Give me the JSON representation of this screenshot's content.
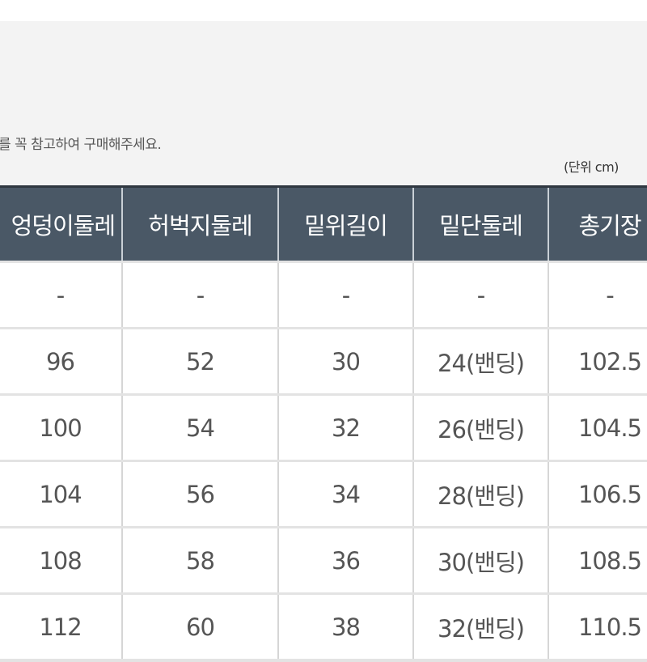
{
  "notice": "를 꼭 참고하여 구매해주세요.",
  "unit_label": "(단위 cm)",
  "table": {
    "headers": [
      "엉덩이둘레",
      "허벅지둘레",
      "밑위길이",
      "밑단둘레",
      "총기장"
    ],
    "rows": [
      [
        "-",
        "-",
        "-",
        "-",
        "-"
      ],
      [
        "96",
        "52",
        "30",
        "24(밴딩)",
        "102.5"
      ],
      [
        "100",
        "54",
        "32",
        "26(밴딩)",
        "104.5"
      ],
      [
        "104",
        "56",
        "34",
        "28(밴딩)",
        "106.5"
      ],
      [
        "108",
        "58",
        "36",
        "30(밴딩)",
        "108.5"
      ],
      [
        "112",
        "60",
        "38",
        "32(밴딩)",
        "110.5"
      ]
    ]
  },
  "colors": {
    "header_bg": "#4a5866",
    "header_text": "#ffffff"
  }
}
